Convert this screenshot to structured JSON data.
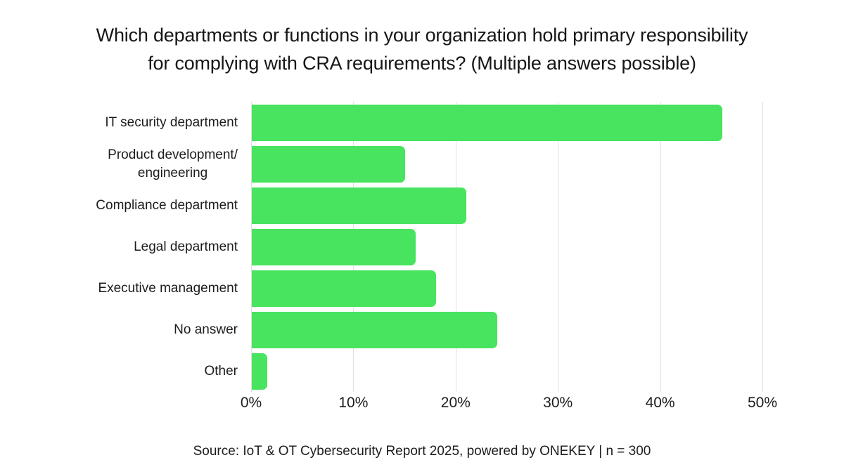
{
  "header": {
    "title_line1": "Which departments or functions in your organization hold primary responsibility",
    "title_line2": "for complying with CRA requirements? (Multiple answers possible)"
  },
  "chart_data": {
    "type": "bar",
    "orientation": "horizontal",
    "title": "Which departments or functions in your organization hold primary responsibility for complying with CRA requirements? (Multiple answers possible)",
    "categories": [
      "IT security department",
      "Product development/\nengineering",
      "Compliance department",
      "Legal department",
      "Executive management",
      "No answer",
      "Other"
    ],
    "values": [
      46,
      15,
      21,
      16,
      18,
      24,
      1.5
    ],
    "unit": "%",
    "xlabel": "",
    "ylabel": "",
    "xlim": [
      0,
      50
    ],
    "x_ticks": [
      "0%",
      "10%",
      "20%",
      "30%",
      "40%",
      "50%"
    ],
    "grid": "vertical-only",
    "legend": "none",
    "bar_color": "#48E35F",
    "gridline_color": "#e1e1e1",
    "text_color": "#1c1c1c"
  },
  "footer": {
    "source": "Source: IoT & OT Cybersecurity Report 2025, powered by ONEKEY | n = 300"
  }
}
